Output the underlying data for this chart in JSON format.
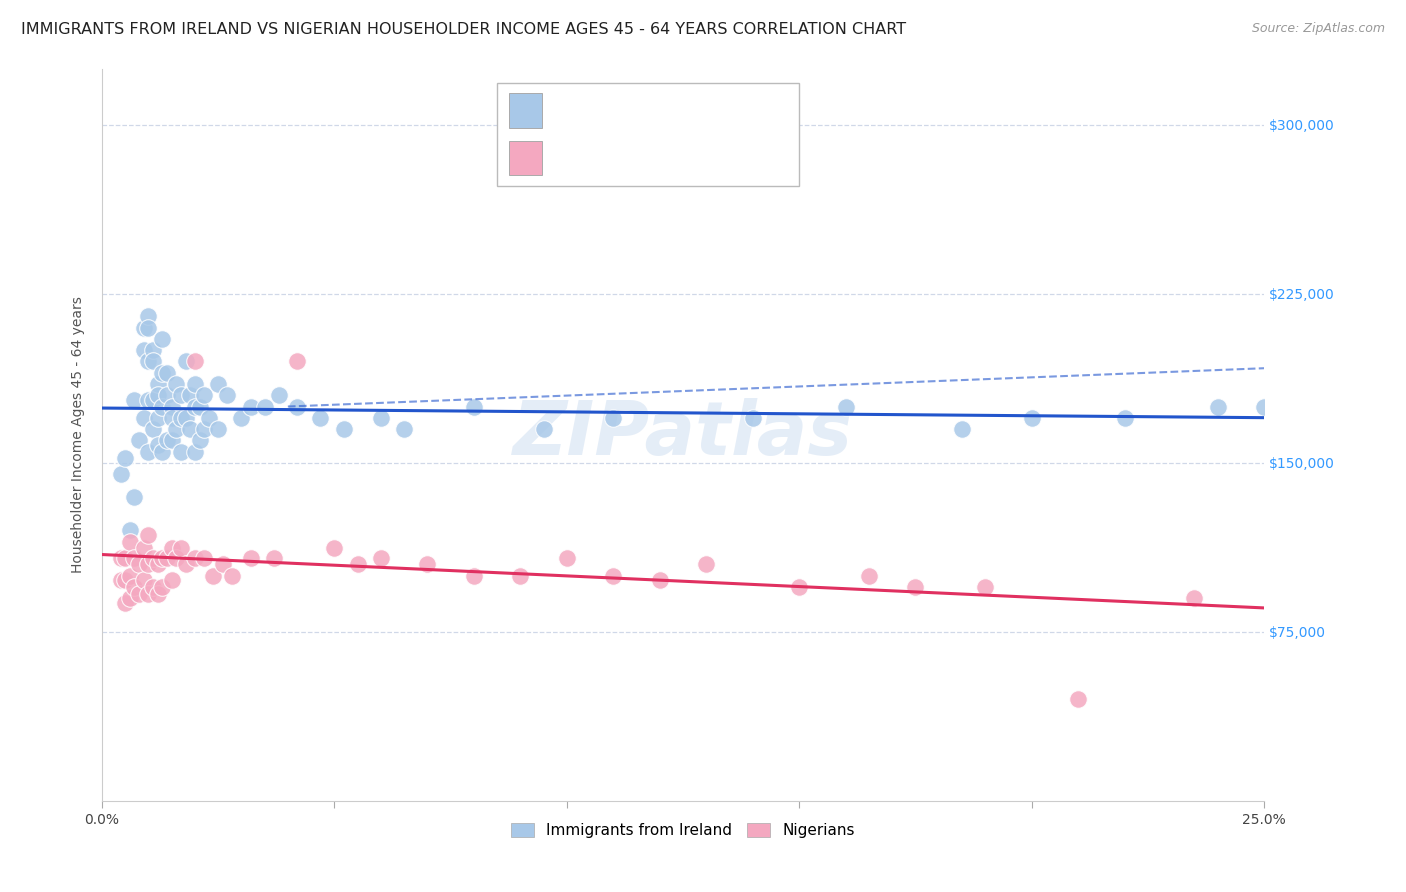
{
  "title": "IMMIGRANTS FROM IRELAND VS NIGERIAN HOUSEHOLDER INCOME AGES 45 - 64 YEARS CORRELATION CHART",
  "source": "Source: ZipAtlas.com",
  "ylabel": "Householder Income Ages 45 - 64 years",
  "xlim": [
    0.0,
    0.25
  ],
  "ylim": [
    0,
    325000
  ],
  "xtick_positions": [
    0.0,
    0.05,
    0.1,
    0.15,
    0.2,
    0.25
  ],
  "xtick_labels": [
    "0.0%",
    "",
    "",
    "",
    "",
    "25.0%"
  ],
  "ytick_positions": [
    75000,
    150000,
    225000,
    300000
  ],
  "ytick_labels": [
    "$75,000",
    "$150,000",
    "$225,000",
    "$300,000"
  ],
  "ireland_color": "#a8c8e8",
  "nigeria_color": "#f4a8c0",
  "ireland_line_color": "#2255cc",
  "nigeria_line_color": "#e03060",
  "stat_color": "#1155cc",
  "watermark": "ZIPatlas",
  "background_color": "#ffffff",
  "grid_color": "#d0d8e8",
  "title_fontsize": 11.5,
  "axis_label_fontsize": 10,
  "tick_label_fontsize": 10,
  "ireland_scatter_x": [
    0.004,
    0.005,
    0.006,
    0.007,
    0.007,
    0.008,
    0.009,
    0.009,
    0.009,
    0.01,
    0.01,
    0.01,
    0.01,
    0.01,
    0.011,
    0.011,
    0.011,
    0.011,
    0.012,
    0.012,
    0.012,
    0.012,
    0.013,
    0.013,
    0.013,
    0.013,
    0.014,
    0.014,
    0.014,
    0.015,
    0.015,
    0.015,
    0.016,
    0.016,
    0.017,
    0.017,
    0.017,
    0.018,
    0.018,
    0.019,
    0.019,
    0.02,
    0.02,
    0.02,
    0.021,
    0.021,
    0.022,
    0.022,
    0.023,
    0.025,
    0.025,
    0.027,
    0.03,
    0.032,
    0.035,
    0.038,
    0.042,
    0.047,
    0.052,
    0.06,
    0.065,
    0.08,
    0.095,
    0.11,
    0.14,
    0.16,
    0.185,
    0.2,
    0.22,
    0.24,
    0.25
  ],
  "ireland_scatter_y": [
    145000,
    152000,
    120000,
    178000,
    135000,
    160000,
    210000,
    200000,
    170000,
    215000,
    210000,
    195000,
    178000,
    155000,
    200000,
    195000,
    178000,
    165000,
    185000,
    180000,
    170000,
    158000,
    205000,
    190000,
    175000,
    155000,
    190000,
    180000,
    160000,
    175000,
    170000,
    160000,
    185000,
    165000,
    180000,
    170000,
    155000,
    195000,
    170000,
    180000,
    165000,
    185000,
    175000,
    155000,
    175000,
    160000,
    180000,
    165000,
    170000,
    185000,
    165000,
    180000,
    170000,
    175000,
    175000,
    180000,
    175000,
    170000,
    165000,
    170000,
    165000,
    175000,
    165000,
    170000,
    170000,
    175000,
    165000,
    170000,
    170000,
    175000,
    175000
  ],
  "nigeria_scatter_x": [
    0.004,
    0.004,
    0.005,
    0.005,
    0.005,
    0.006,
    0.006,
    0.006,
    0.007,
    0.007,
    0.008,
    0.008,
    0.009,
    0.009,
    0.01,
    0.01,
    0.01,
    0.011,
    0.011,
    0.012,
    0.012,
    0.013,
    0.013,
    0.014,
    0.015,
    0.015,
    0.016,
    0.017,
    0.018,
    0.02,
    0.02,
    0.022,
    0.024,
    0.026,
    0.028,
    0.032,
    0.037,
    0.042,
    0.05,
    0.055,
    0.06,
    0.07,
    0.08,
    0.09,
    0.1,
    0.11,
    0.12,
    0.13,
    0.15,
    0.165,
    0.175,
    0.19,
    0.21,
    0.235
  ],
  "nigeria_scatter_y": [
    108000,
    98000,
    108000,
    98000,
    88000,
    115000,
    100000,
    90000,
    108000,
    95000,
    105000,
    92000,
    112000,
    98000,
    118000,
    105000,
    92000,
    108000,
    95000,
    105000,
    92000,
    108000,
    95000,
    108000,
    112000,
    98000,
    108000,
    112000,
    105000,
    195000,
    108000,
    108000,
    100000,
    105000,
    100000,
    108000,
    108000,
    195000,
    112000,
    105000,
    108000,
    105000,
    100000,
    100000,
    108000,
    100000,
    98000,
    105000,
    95000,
    100000,
    95000,
    95000,
    45000,
    90000
  ]
}
